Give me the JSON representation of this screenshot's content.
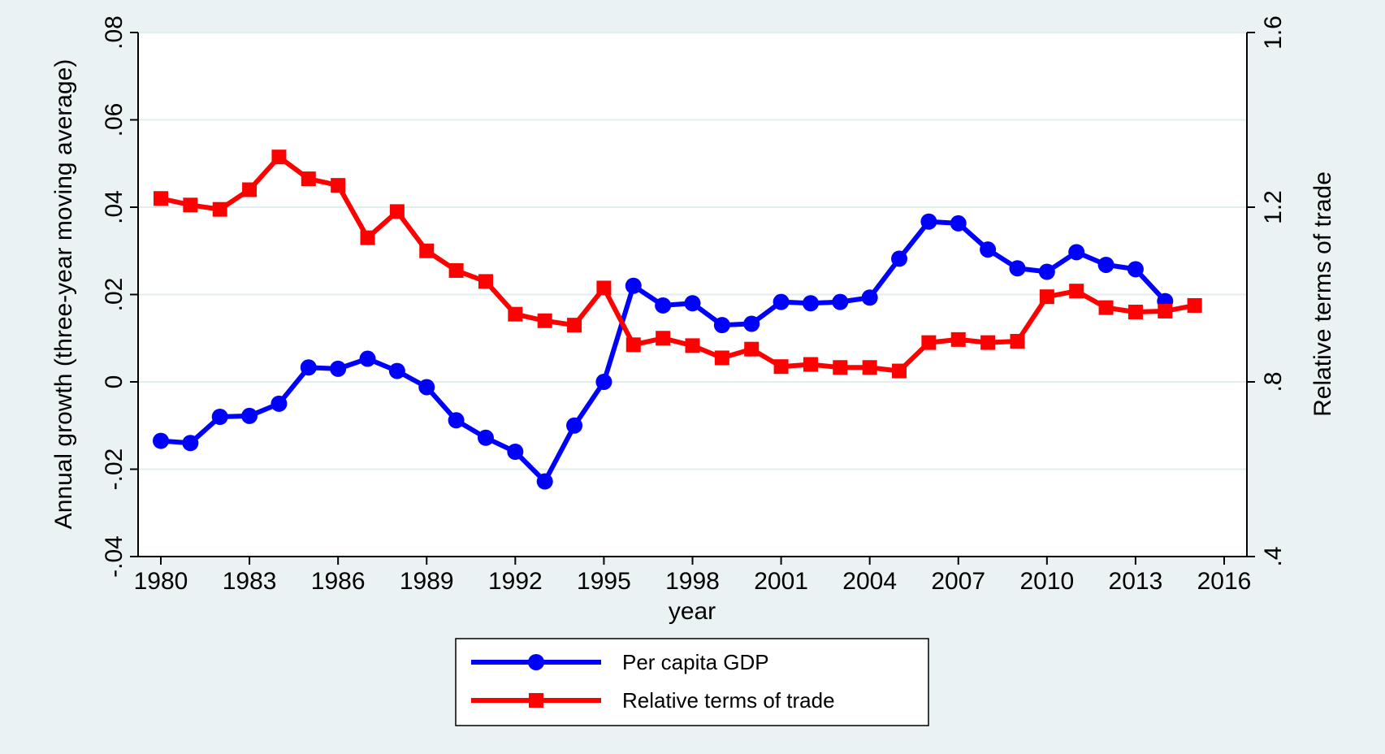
{
  "chart_data": {
    "type": "line",
    "xlabel": "year",
    "ylabel_left": "Annual growth (three-year moving average)",
    "ylabel_right": "Relative terms of trade",
    "xlim": [
      1980,
      2016
    ],
    "x_ticks": [
      "1980",
      "1983",
      "1986",
      "1989",
      "1992",
      "1995",
      "1998",
      "2001",
      "2004",
      "2007",
      "2010",
      "2013",
      "2016"
    ],
    "ylim_left": [
      -0.04,
      0.08
    ],
    "y_ticks_left": [
      {
        "value": -0.04,
        "label": "-.04"
      },
      {
        "value": -0.02,
        "label": "-.02"
      },
      {
        "value": 0,
        "label": "0"
      },
      {
        "value": 0.02,
        "label": ".02"
      },
      {
        "value": 0.04,
        "label": ".04"
      },
      {
        "value": 0.06,
        "label": ".06"
      },
      {
        "value": 0.08,
        "label": ".08"
      }
    ],
    "ylim_right": [
      0.4,
      1.6
    ],
    "y_ticks_right": [
      {
        "value": 0.4,
        "label": ".4"
      },
      {
        "value": 0.8,
        "label": ".8"
      },
      {
        "value": 1.2,
        "label": "1.2"
      },
      {
        "value": 1.6,
        "label": "1.6"
      }
    ],
    "grid": true,
    "legend_position": "bottom",
    "series": [
      {
        "name": "Per capita GDP",
        "axis": "left",
        "color": "#0000ff",
        "marker": "circle",
        "x": [
          1980,
          1981,
          1982,
          1983,
          1984,
          1985,
          1986,
          1987,
          1988,
          1989,
          1990,
          1991,
          1992,
          1993,
          1994,
          1995,
          1996,
          1997,
          1998,
          1999,
          2000,
          2001,
          2002,
          2003,
          2004,
          2005,
          2006,
          2007,
          2008,
          2009,
          2010,
          2011,
          2012,
          2013,
          2014
        ],
        "y": [
          -0.0135,
          -0.014,
          -0.008,
          -0.0078,
          -0.005,
          0.0033,
          0.003,
          0.0053,
          0.0025,
          -0.0012,
          -0.0088,
          -0.0128,
          -0.016,
          -0.0228,
          -0.01,
          0.0,
          0.022,
          0.0175,
          0.018,
          0.013,
          0.0133,
          0.0183,
          0.018,
          0.0183,
          0.0193,
          0.0282,
          0.0367,
          0.0363,
          0.0303,
          0.026,
          0.0252,
          0.0297,
          0.0268,
          0.0258,
          0.0185
        ]
      },
      {
        "name": "Relative terms of trade",
        "axis": "right",
        "color": "#ff0000",
        "marker": "square",
        "x": [
          1980,
          1981,
          1982,
          1983,
          1984,
          1985,
          1986,
          1987,
          1988,
          1989,
          1990,
          1991,
          1992,
          1993,
          1994,
          1995,
          1996,
          1997,
          1998,
          1999,
          2000,
          2001,
          2002,
          2003,
          2004,
          2005,
          2006,
          2007,
          2008,
          2009,
          2010,
          2011,
          2012,
          2013,
          2014,
          2015
        ],
        "y": [
          1.22,
          1.205,
          1.195,
          1.24,
          1.315,
          1.265,
          1.25,
          1.13,
          1.19,
          1.1,
          1.055,
          1.03,
          0.955,
          0.94,
          0.93,
          1.015,
          0.885,
          0.9,
          0.883,
          0.855,
          0.875,
          0.835,
          0.84,
          0.833,
          0.833,
          0.825,
          0.89,
          0.897,
          0.89,
          0.893,
          0.995,
          1.008,
          0.97,
          0.96,
          0.962,
          0.975
        ]
      }
    ]
  }
}
